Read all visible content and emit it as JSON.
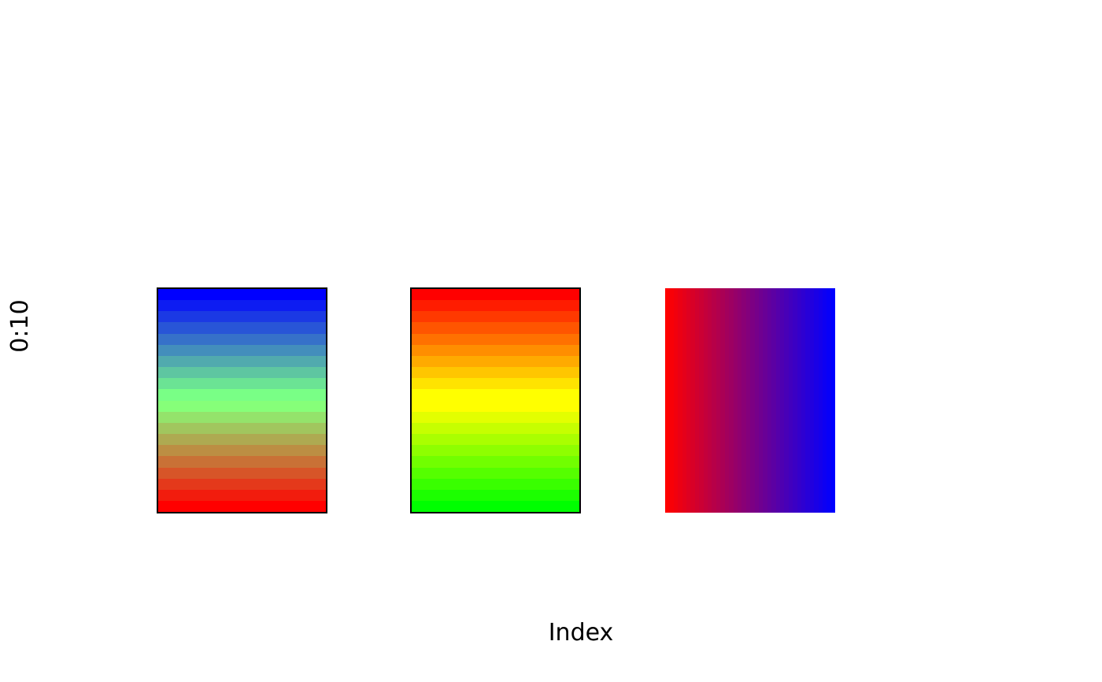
{
  "figure": {
    "background_color": "#ffffff",
    "text_color": "#000000"
  },
  "chart_data": {
    "type": "gradient-rect",
    "title": "",
    "xlabel": "Index",
    "ylabel": "0:10",
    "xlim": [
      0,
      10
    ],
    "ylim": [
      0,
      10
    ],
    "axes_shown": false,
    "grid": false,
    "legend": null,
    "rects": [
      {
        "name": "blue-green-red-vertical-banded",
        "x_range": [
          1,
          3
        ],
        "y_range": [
          2,
          8
        ],
        "gradient_axis": "y",
        "n_slices": 20,
        "border_color": "#000000",
        "direction": "top-to-bottom",
        "colors": [
          "#0000FF",
          "#0D1CF2",
          "#1B39E4",
          "#2855D7",
          "#3671C9",
          "#438EBC",
          "#51AAAE",
          "#5EC6A1",
          "#6BE394",
          "#79FF86",
          "#86FF79",
          "#94E36B",
          "#A1C65E",
          "#AEAA51",
          "#BC8E43",
          "#C97136",
          "#D75528",
          "#E4391B",
          "#F21C0D",
          "#FF0000"
        ]
      },
      {
        "name": "red-yellow-green-vertical-banded",
        "x_range": [
          4,
          6
        ],
        "y_range": [
          2,
          8
        ],
        "gradient_axis": "y",
        "n_slices": 20,
        "border_color": "#000000",
        "direction": "top-to-bottom",
        "colors": [
          "#FF0000",
          "#FF1C00",
          "#FF3900",
          "#FF5500",
          "#FF7100",
          "#FF8E00",
          "#FFAA00",
          "#FFC600",
          "#FFE300",
          "#FFFF00",
          "#FFFF00",
          "#E3FF00",
          "#C6FF00",
          "#AAFF00",
          "#8EFF00",
          "#71FF00",
          "#55FF00",
          "#39FF00",
          "#1CFF00",
          "#00FF00"
        ]
      },
      {
        "name": "red-blue-horizontal-smooth",
        "x_range": [
          7,
          9
        ],
        "y_range": [
          2,
          8
        ],
        "gradient_axis": "x",
        "n_slices": 40,
        "border_color": null,
        "direction": "left-to-right",
        "colors": [
          "#FF0000",
          "#F80007",
          "#F2000D",
          "#EB0014",
          "#E5001A",
          "#DE0021",
          "#D80027",
          "#D1002E",
          "#CB0034",
          "#C4003B",
          "#BE0041",
          "#B70048",
          "#B1004E",
          "#AA0055",
          "#A3005C",
          "#9D0062",
          "#960069",
          "#90006F",
          "#890076",
          "#83007C",
          "#7C0083",
          "#760089",
          "#6F0090",
          "#690096",
          "#62009D",
          "#5C00A3",
          "#5500AA",
          "#4E00B1",
          "#4800B7",
          "#4100BE",
          "#3B00C4",
          "#3400CB",
          "#2E00D1",
          "#2700D8",
          "#2100DE",
          "#1A00E5",
          "#1400EB",
          "#0D00F2",
          "#0700F8",
          "#0000FF"
        ]
      }
    ]
  }
}
